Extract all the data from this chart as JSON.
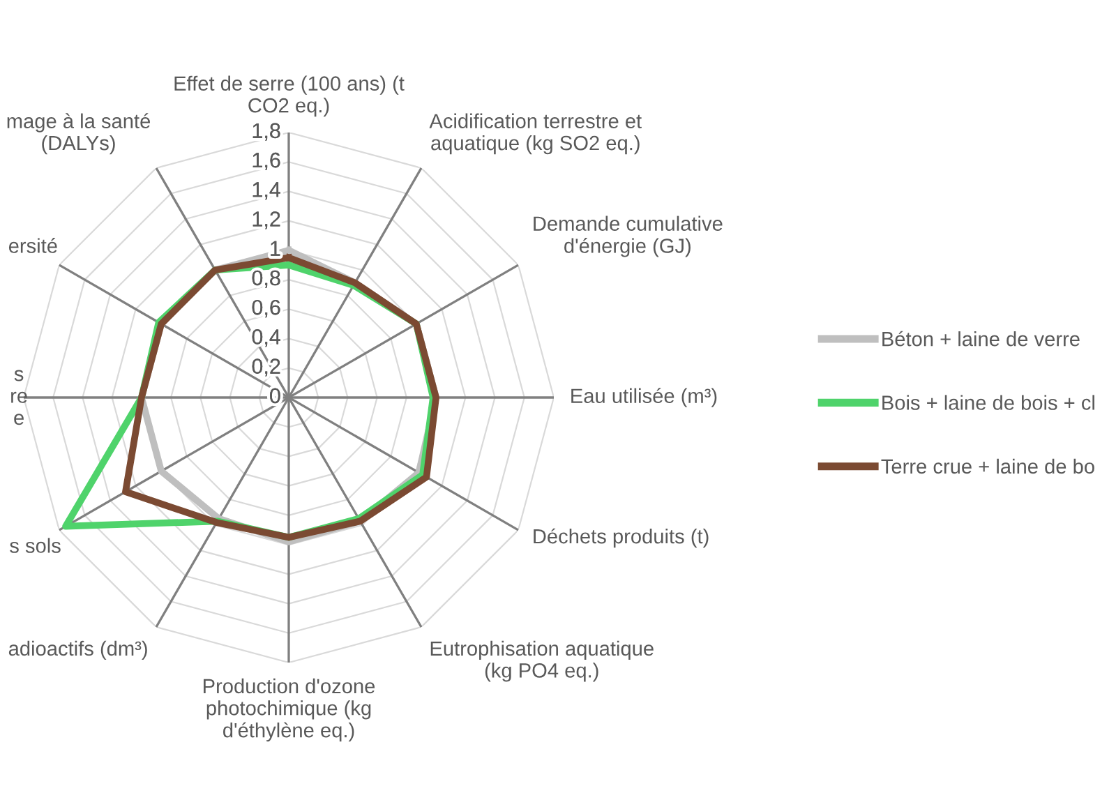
{
  "chart_data": {
    "type": "radar",
    "categories": [
      "Effet de serre (100 ans) (t\nCO2 eq.)",
      "Acidification terrestre et\naquatique (kg SO2 eq.)",
      "Demande cumulative\nd'énergie (GJ)",
      "Eau utilisée (m³)",
      "Déchets produits (t)",
      "Eutrophisation aquatique\n(kg PO4 eq.)",
      "Production d'ozone\nphotochimique (kg\nd'éthylène eq.)",
      "adioactifs (dm³)",
      "s sols",
      "s\nre\ne",
      "ersité",
      "mage à la santé\n(DALYs)"
    ],
    "series": [
      {
        "name": "Béton + laine de verre",
        "color": "#bfbfbf",
        "values": [
          1.0,
          0.9,
          1.0,
          1.0,
          1.02,
          0.97,
          0.98,
          0.95,
          1.0,
          1.0,
          1.0,
          1.0
        ]
      },
      {
        "name": "Bois + laine de bois + cl",
        "color": "#4fd36b",
        "values": [
          0.9,
          0.88,
          1.0,
          0.98,
          1.05,
          0.95,
          0.95,
          0.97,
          1.75,
          1.0,
          1.02,
          1.0
        ]
      },
      {
        "name": "Terre crue + laine de bo",
        "color": "#7b4a32",
        "values": [
          0.95,
          0.9,
          1.0,
          1.0,
          1.08,
          0.97,
          0.95,
          0.98,
          1.28,
          1.0,
          1.0,
          1.0
        ]
      }
    ],
    "ylim": [
      0,
      1.8
    ],
    "yticks": [
      0,
      {
        "value": 0.2,
        "label": "0,2"
      },
      {
        "value": 0.4,
        "label": "0,4"
      },
      {
        "value": 0.6,
        "label": "0,6"
      },
      {
        "value": 0.8,
        "label": "0,8"
      },
      1,
      {
        "value": 1.2,
        "label": "1,2"
      },
      {
        "value": 1.4,
        "label": "1,4"
      },
      {
        "value": 1.6,
        "label": "1,6"
      },
      {
        "value": 1.8,
        "label": "1,8"
      }
    ],
    "grid": true,
    "legend": "right",
    "line_style": "solid",
    "marker": "none"
  }
}
